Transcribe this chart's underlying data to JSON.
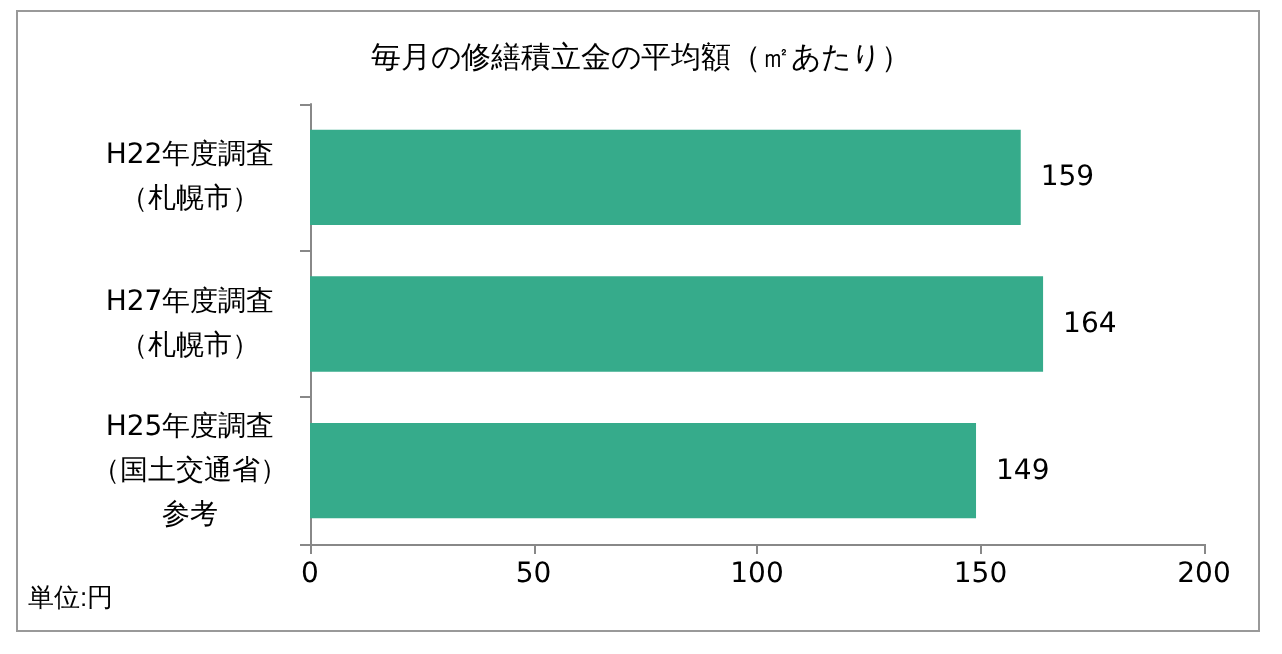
{
  "chart_data": {
    "type": "bar",
    "orientation": "horizontal",
    "title": "毎月の修繕積立金の平均額（㎡あたり）",
    "categories": [
      "H22年度調査（札幌市）",
      "H27年度調査（札幌市）",
      "H25年度調査（国土交通省）参考"
    ],
    "values": [
      159,
      164,
      149
    ],
    "color": "#36ab8b",
    "data_labels": true,
    "xlim": [
      0,
      200
    ],
    "xticks": [
      0,
      50,
      100,
      150,
      200
    ],
    "grid": false,
    "annotations": [
      "単位:円"
    ]
  }
}
